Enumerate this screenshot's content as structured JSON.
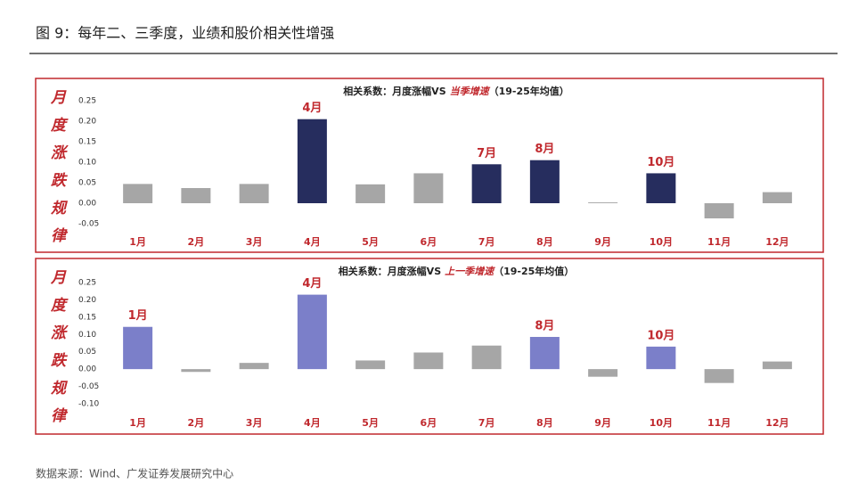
{
  "header": {
    "title": "图 9：每年二、三季度，业绩和股价相关性增强"
  },
  "source": "数据来源：Wind、广发证券发展研究中心",
  "chart_data": [
    {
      "type": "bar",
      "side_label": "月度涨跌规律",
      "title": "相关系数：月度涨幅VS",
      "title_highlight": "当季增速",
      "title_suffix": "（19-25年均值）",
      "categories": [
        "1月",
        "2月",
        "3月",
        "4月",
        "5月",
        "6月",
        "7月",
        "8月",
        "9月",
        "10月",
        "11月",
        "12月"
      ],
      "values": [
        0.047,
        0.037,
        0.047,
        0.205,
        0.046,
        0.073,
        0.095,
        0.105,
        0.002,
        0.073,
        -0.037,
        0.027
      ],
      "highlight_labels": [
        null,
        null,
        null,
        "4月",
        null,
        null,
        "7月",
        "8月",
        null,
        "10月",
        null,
        null
      ],
      "colors": [
        "#a6a6a6",
        "#a6a6a6",
        "#a6a6a6",
        "#262d5e",
        "#a6a6a6",
        "#a6a6a6",
        "#262d5e",
        "#262d5e",
        "#a6a6a6",
        "#262d5e",
        "#a6a6a6",
        "#a6a6a6"
      ],
      "ylim": [
        -0.05,
        0.25
      ],
      "yticks": [
        {
          "value": -0.05,
          "label": "-0.05"
        },
        {
          "value": 0,
          "label": "0.00"
        },
        {
          "value": 0.05,
          "label": "0.05"
        },
        {
          "value": 0.1,
          "label": "0.10"
        },
        {
          "value": 0.15,
          "label": "0.15"
        },
        {
          "value": 0.2,
          "label": "0.20"
        },
        {
          "value": 0.25,
          "label": "0.25"
        }
      ],
      "grid": false
    },
    {
      "type": "bar",
      "side_label": "月度涨跌规律",
      "title": "相关系数：月度涨幅VS",
      "title_highlight": "上一季增速",
      "title_suffix": "（19-25年均值）",
      "categories": [
        "1月",
        "2月",
        "3月",
        "4月",
        "5月",
        "6月",
        "7月",
        "8月",
        "9月",
        "10月",
        "11月",
        "12月"
      ],
      "values": [
        0.122,
        -0.008,
        0.018,
        0.215,
        0.025,
        0.048,
        0.068,
        0.093,
        -0.022,
        0.065,
        -0.04,
        0.022
      ],
      "highlight_labels": [
        "1月",
        null,
        null,
        "4月",
        null,
        null,
        null,
        "8月",
        null,
        "10月",
        null,
        null
      ],
      "colors": [
        "#7b7fc9",
        "#a6a6a6",
        "#a6a6a6",
        "#7b7fc9",
        "#a6a6a6",
        "#a6a6a6",
        "#a6a6a6",
        "#7b7fc9",
        "#a6a6a6",
        "#7b7fc9",
        "#a6a6a6",
        "#a6a6a6"
      ],
      "ylim": [
        -0.1,
        0.25
      ],
      "yticks": [
        {
          "value": -0.1,
          "label": "-0.10"
        },
        {
          "value": -0.05,
          "label": "-0.05"
        },
        {
          "value": 0,
          "label": "0.00"
        },
        {
          "value": 0.05,
          "label": "0.05"
        },
        {
          "value": 0.1,
          "label": "0.10"
        },
        {
          "value": 0.15,
          "label": "0.15"
        },
        {
          "value": 0.2,
          "label": "0.20"
        },
        {
          "value": 0.25,
          "label": "0.25"
        }
      ],
      "grid": false
    }
  ]
}
